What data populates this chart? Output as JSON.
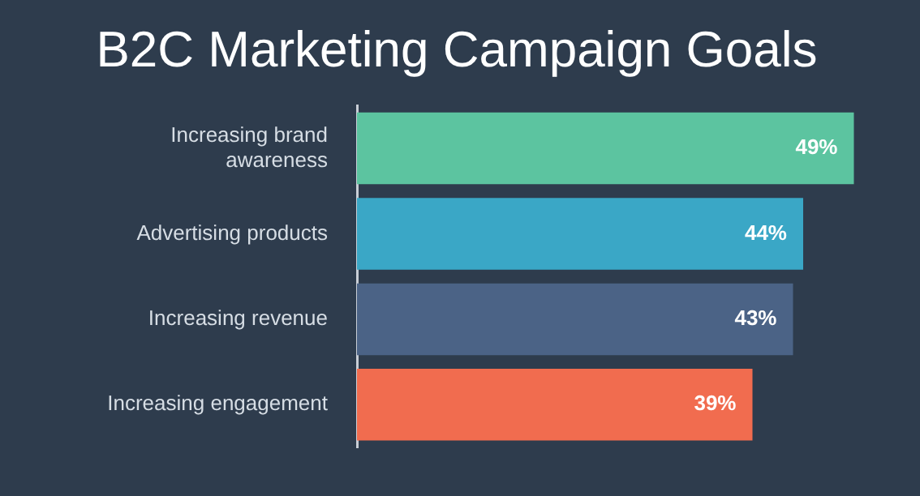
{
  "chart_data": {
    "type": "bar",
    "orientation": "horizontal",
    "title": "B2C Marketing Campaign Goals",
    "categories": [
      "Increasing brand awareness",
      "Advertising products",
      "Increasing revenue",
      "Increasing engagement"
    ],
    "values": [
      49,
      44,
      43,
      39
    ],
    "colors": [
      "#5cc4a0",
      "#3aa7c6",
      "#4b6386",
      "#f16c4f"
    ],
    "value_labels": [
      "49%",
      "44%",
      "43%",
      "39%"
    ],
    "legend": false
  }
}
